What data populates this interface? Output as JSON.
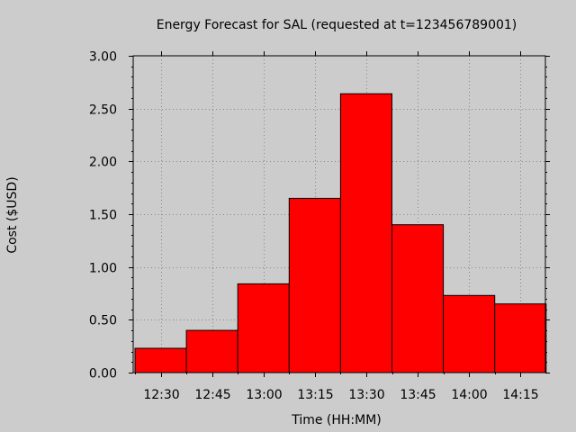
{
  "chart_data": {
    "type": "bar",
    "title": "Energy Forecast for SAL (requested at t=123456789001)",
    "xlabel": "Time (HH:MM)",
    "ylabel": "Cost ($USD)",
    "categories": [
      "12:30",
      "12:45",
      "13:00",
      "13:15",
      "13:30",
      "13:45",
      "14:00",
      "14:15"
    ],
    "values": [
      0.23,
      0.4,
      0.84,
      1.65,
      2.64,
      1.4,
      0.73,
      0.65
    ],
    "ylim": [
      0,
      3
    ],
    "yticks": [
      "0.00",
      "0.50",
      "1.00",
      "1.50",
      "2.00",
      "2.50",
      "3.00"
    ],
    "ytick_values": [
      0,
      0.5,
      1,
      1.5,
      2,
      2.5,
      3
    ],
    "grid": true,
    "colors": {
      "bar_fill": "#ff0000",
      "bar_edge": "#000000",
      "background": "#cccccc",
      "plot_background": "#cccccc",
      "grid": "#888888"
    }
  }
}
